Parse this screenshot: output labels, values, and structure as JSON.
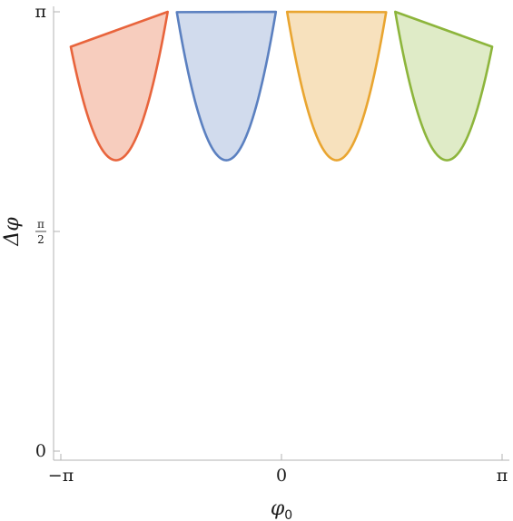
{
  "chart_data": {
    "type": "area",
    "title": "",
    "xlabel": "φ0",
    "ylabel": "Δφ",
    "xlim": [
      -3.14159,
      3.14159
    ],
    "ylim": [
      0,
      3.14159
    ],
    "x_ticks": [
      {
        "value": -3.14159,
        "label": "−π"
      },
      {
        "value": 0,
        "label": "0"
      },
      {
        "value": 3.14159,
        "label": "π"
      }
    ],
    "y_ticks": [
      {
        "value": 0,
        "label": "0"
      },
      {
        "value": 1.5708,
        "label": "π/2",
        "numerator": "π",
        "denominator": "2"
      },
      {
        "value": 3.14159,
        "label": "π"
      }
    ],
    "grid": false,
    "series": [
      {
        "color": "#e8643c",
        "fill": "#f6c4b3",
        "center": -2.3562,
        "x_range": [
          -3.0,
          -1.62
        ],
        "y_min": 2.08,
        "y_max": 3.14159
      },
      {
        "color": "#5b80c0",
        "fill": "#c9d5ea",
        "center": -0.7854,
        "x_range": [
          -1.49,
          -0.08
        ],
        "y_min": 2.08,
        "y_max": 3.14159
      },
      {
        "color": "#e9a530",
        "fill": "#f6dcb2",
        "center": 0.7854,
        "x_range": [
          0.08,
          1.49
        ],
        "y_min": 2.08,
        "y_max": 3.14159
      },
      {
        "color": "#8db53c",
        "fill": "#d9e8bd",
        "center": 2.3562,
        "x_range": [
          1.62,
          3.0
        ],
        "y_min": 2.08,
        "y_max": 3.14159
      }
    ]
  }
}
